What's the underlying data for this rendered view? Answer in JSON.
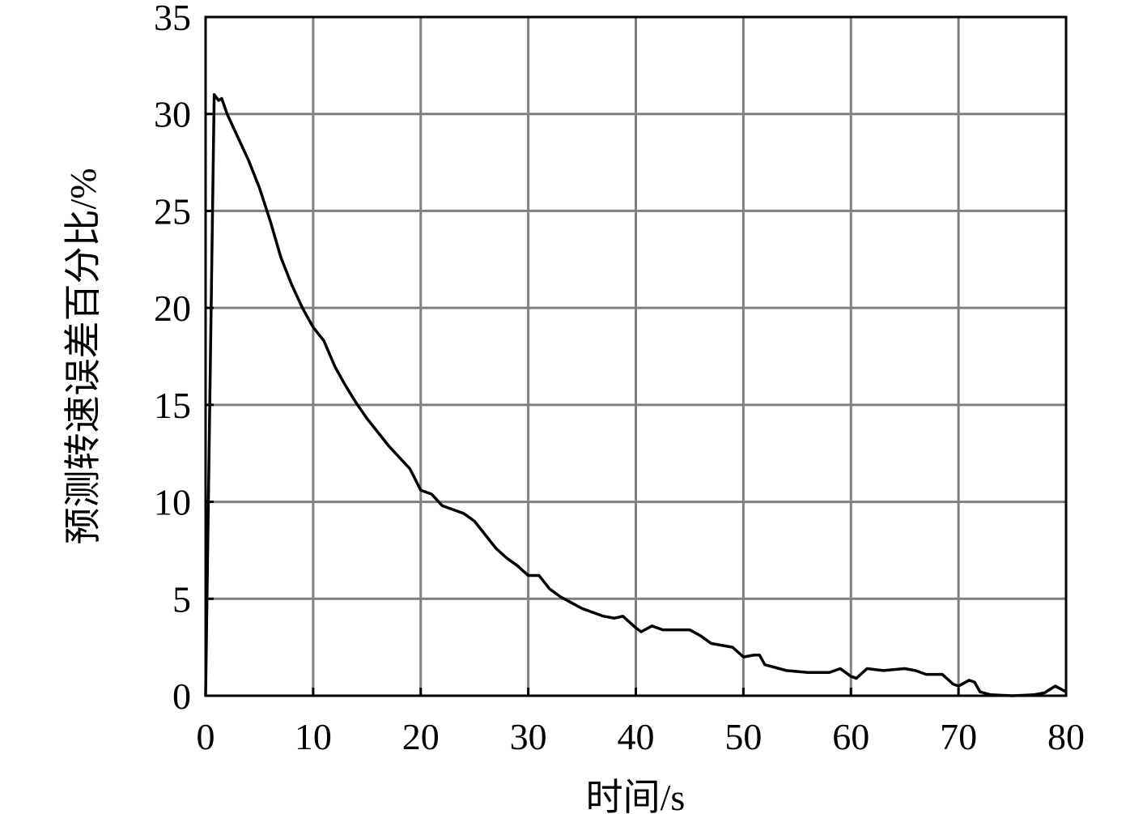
{
  "chart_data": {
    "type": "line",
    "x_label": "时间/s",
    "y_label": "预测转速误差百分比/%",
    "xlim": [
      0,
      80
    ],
    "ylim": [
      0,
      35
    ],
    "xticks": [
      0,
      10,
      20,
      30,
      40,
      50,
      60,
      70,
      80
    ],
    "yticks": [
      0,
      5,
      10,
      15,
      20,
      25,
      30,
      35
    ],
    "grid": true,
    "series": [
      {
        "color": "#000000",
        "x": [
          0,
          0.8,
          1.2,
          1.5,
          2,
          3,
          4,
          5,
          6,
          7,
          8,
          9,
          10,
          11,
          12,
          13,
          14,
          15,
          16,
          17,
          18,
          19,
          20,
          21,
          22,
          23,
          24,
          25,
          26,
          27,
          28,
          29,
          30,
          31,
          32,
          33,
          34,
          35,
          36,
          37,
          38,
          38.8,
          40,
          40.5,
          41.5,
          42.5,
          44,
          45,
          46,
          47,
          48,
          49,
          50,
          51,
          51.5,
          52,
          54,
          56,
          58,
          59,
          60,
          60.5,
          61.5,
          63,
          65,
          66,
          67,
          68.5,
          69.5,
          70,
          71,
          71.5,
          72,
          73,
          75,
          77,
          78,
          79,
          80
        ],
        "values": [
          0,
          31,
          30.7,
          30.8,
          30,
          28.8,
          27.6,
          26.2,
          24.5,
          22.6,
          21.2,
          20,
          19,
          18.3,
          17,
          16,
          15.1,
          14.3,
          13.6,
          12.9,
          12.3,
          11.7,
          10.6,
          10.4,
          9.8,
          9.6,
          9.4,
          9,
          8.3,
          7.6,
          7.1,
          6.7,
          6.2,
          6.2,
          5.5,
          5.1,
          4.8,
          4.5,
          4.3,
          4.1,
          4.0,
          4.1,
          3.5,
          3.3,
          3.6,
          3.4,
          3.4,
          3.4,
          3.1,
          2.7,
          2.6,
          2.5,
          2.0,
          2.1,
          2.1,
          1.6,
          1.3,
          1.2,
          1.2,
          1.4,
          1.0,
          0.9,
          1.4,
          1.3,
          1.4,
          1.3,
          1.1,
          1.1,
          0.6,
          0.5,
          0.8,
          0.7,
          0.2,
          0.05,
          0,
          0.05,
          0.15,
          0.5,
          0.2
        ]
      }
    ]
  }
}
